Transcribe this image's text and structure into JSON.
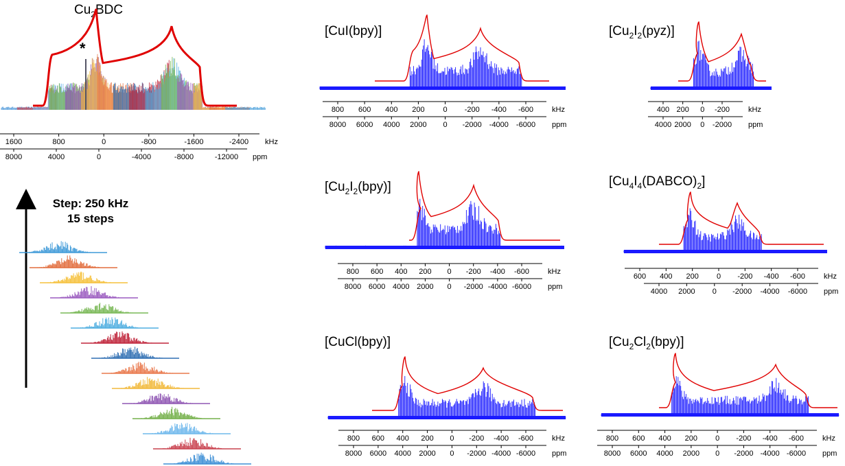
{
  "stack_label": {
    "line1": "Step: 250 kHz",
    "line2": "15 steps"
  },
  "colors": {
    "simulation": "#e00000",
    "experiment": "#1a1aff",
    "stack": [
      "#3d8fd6",
      "#c9424f",
      "#6fb8ec",
      "#74b04a",
      "#8f56b3",
      "#f2b93b",
      "#e9784c",
      "#2f6fb3",
      "#c0243a",
      "#4faee0",
      "#79b856",
      "#9b5cc0",
      "#f6c13c",
      "#e26d3d",
      "#3f9ad8"
    ]
  },
  "chart_data": [
    {
      "id": "cu2bdc",
      "type": "line",
      "title_parts": [
        "Cu",
        "2",
        "BDC"
      ],
      "annotation": "*",
      "axes": [
        {
          "unit": "kHz",
          "ticks": [
            1600,
            800,
            0,
            -800,
            -1600,
            -2400
          ]
        },
        {
          "unit": "ppm",
          "ticks": [
            8000,
            4000,
            0,
            -4000,
            -8000,
            -12000
          ]
        }
      ],
      "series": [
        {
          "values": []
        },
        {
          "values": []
        }
      ]
    },
    {
      "id": "cui-bpy",
      "type": "line",
      "title_parts": [
        "[CuI(bpy)]"
      ],
      "axes": [
        {
          "unit": "kHz",
          "ticks": [
            800,
            600,
            400,
            200,
            0,
            -200,
            -400,
            -600
          ]
        },
        {
          "unit": "ppm",
          "ticks": [
            8000,
            6000,
            4000,
            2000,
            0,
            -2000,
            -4000,
            -6000
          ]
        }
      ],
      "series": [
        {
          "values": []
        },
        {
          "values": []
        }
      ]
    },
    {
      "id": "cu2i2-pyz",
      "type": "line",
      "title_parts": [
        "[Cu",
        "2",
        "I",
        "2",
        "(pyz)]"
      ],
      "axes": [
        {
          "unit": "kHz",
          "ticks": [
            400,
            200,
            0,
            -200
          ]
        },
        {
          "unit": "ppm",
          "ticks": [
            4000,
            2000,
            0,
            -2000
          ]
        }
      ],
      "series": [
        {
          "values": []
        },
        {
          "values": []
        }
      ]
    },
    {
      "id": "cu2i2-bpy",
      "type": "line",
      "title_parts": [
        "[Cu",
        "2",
        "I",
        "2",
        "(bpy)]"
      ],
      "axes": [
        {
          "unit": "kHz",
          "ticks": [
            800,
            600,
            400,
            200,
            0,
            -200,
            -400,
            -600
          ]
        },
        {
          "unit": "ppm",
          "ticks": [
            8000,
            6000,
            4000,
            2000,
            0,
            -2000,
            -4000,
            -6000
          ]
        }
      ],
      "series": [
        {
          "values": []
        },
        {
          "values": []
        }
      ]
    },
    {
      "id": "cu4i4-dabco",
      "type": "line",
      "title_parts": [
        "[Cu",
        "4",
        "I",
        "4",
        "(DABCO)",
        "2",
        "]"
      ],
      "axes": [
        {
          "unit": "kHz",
          "ticks": [
            600,
            400,
            200,
            0,
            -200,
            -400,
            -600
          ]
        },
        {
          "unit": "ppm",
          "ticks": [
            4000,
            2000,
            0,
            -2000,
            -4000,
            -6000
          ]
        }
      ],
      "series": [
        {
          "values": []
        },
        {
          "values": []
        }
      ]
    },
    {
      "id": "cucl-bpy",
      "type": "line",
      "title_parts": [
        "[CuCl(bpy)]"
      ],
      "axes": [
        {
          "unit": "kHz",
          "ticks": [
            800,
            600,
            400,
            200,
            0,
            -200,
            -400,
            -600
          ]
        },
        {
          "unit": "ppm",
          "ticks": [
            8000,
            6000,
            4000,
            2000,
            0,
            -2000,
            -4000,
            -6000
          ]
        }
      ],
      "series": [
        {
          "values": []
        },
        {
          "values": []
        }
      ]
    },
    {
      "id": "cu2cl2-bpy",
      "type": "line",
      "title_parts": [
        "[Cu",
        "2",
        "Cl",
        "2",
        "(bpy)]"
      ],
      "axes": [
        {
          "unit": "kHz",
          "ticks": [
            800,
            600,
            400,
            200,
            0,
            -200,
            -400,
            -600
          ]
        },
        {
          "unit": "ppm",
          "ticks": [
            8000,
            6000,
            4000,
            2000,
            0,
            -2000,
            -4000,
            -6000
          ]
        }
      ],
      "series": [
        {
          "values": []
        },
        {
          "values": []
        }
      ]
    }
  ]
}
